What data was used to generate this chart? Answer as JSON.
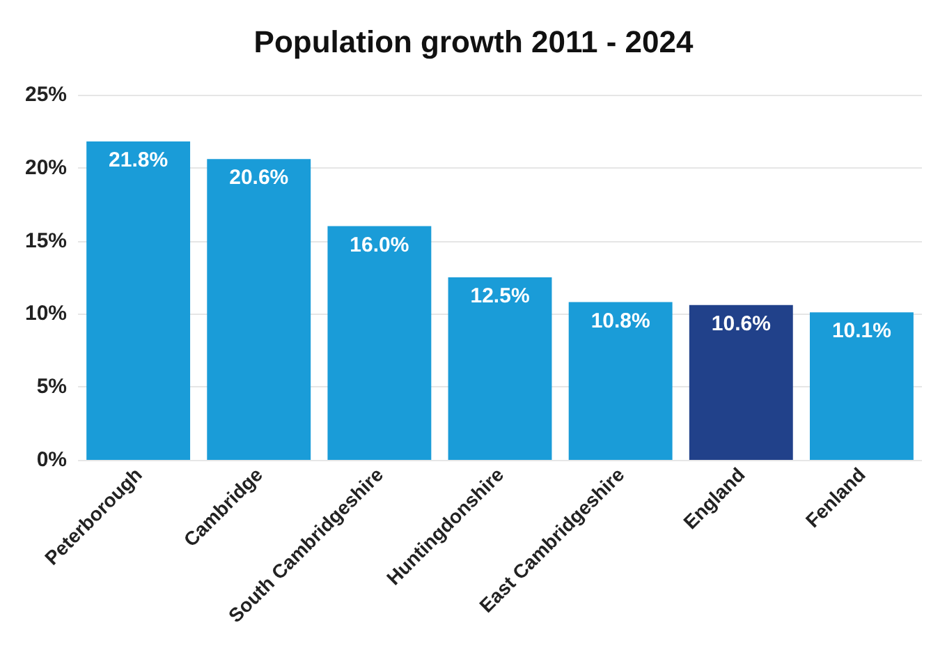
{
  "chart_data": {
    "type": "bar",
    "title": "Population growth 2011 - 2024",
    "categories": [
      "Peterborough",
      "Cambridge",
      "South Cambridgeshire",
      "Huntingdonshire",
      "East Cambridgeshire",
      "England",
      "Fenland"
    ],
    "values": [
      21.8,
      20.6,
      16.0,
      12.5,
      10.8,
      10.6,
      10.1
    ],
    "colors": [
      "#1a9cd8",
      "#1a9cd8",
      "#1a9cd8",
      "#1a9cd8",
      "#1a9cd8",
      "#21418a",
      "#1a9cd8"
    ],
    "value_labels": [
      "21.8%",
      "20.6%",
      "16.0%",
      "12.5%",
      "10.8%",
      "10.6%",
      "10.1%"
    ],
    "ylim": [
      0,
      25
    ],
    "yticks": [
      {
        "value": 0,
        "label": "0%"
      },
      {
        "value": 5,
        "label": "5%"
      },
      {
        "value": 10,
        "label": "10%"
      },
      {
        "value": 15,
        "label": "15%"
      },
      {
        "value": 20,
        "label": "20%"
      },
      {
        "value": 25,
        "label": "25%"
      }
    ],
    "grid": "y"
  }
}
